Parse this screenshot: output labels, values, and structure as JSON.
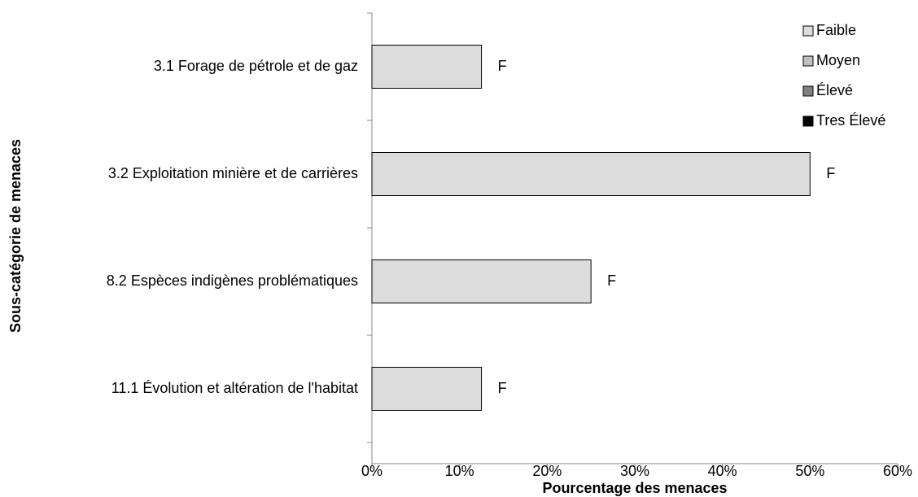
{
  "chart_data": {
    "type": "bar",
    "orientation": "horizontal",
    "stacked": true,
    "x_label": "Pourcentage des menaces",
    "y_label": "Sous-catégorie de menaces",
    "categories": [
      "3.1 Forage de pétrole et de gaz",
      "3.2 Exploitation minière et de carrières",
      "8.2 Espèces indigènes problématiques",
      "11.1 Évolution et altération de l'habitat"
    ],
    "series": [
      {
        "name": "Faible",
        "color": "#dcdcdc",
        "values": [
          12.5,
          50,
          25,
          12.5
        ],
        "value_labels": [
          "F",
          "F",
          "F",
          "F"
        ]
      },
      {
        "name": "Moyen",
        "color": "#bfbfbf",
        "values": [
          0,
          0,
          0,
          0
        ]
      },
      {
        "name": "Élevé",
        "color": "#808080",
        "values": [
          0,
          0,
          0,
          0
        ]
      },
      {
        "name": "Tres Élevé",
        "color": "#000000",
        "values": [
          0,
          0,
          0,
          0
        ]
      }
    ],
    "xlim": [
      0,
      60
    ],
    "xticks": [
      {
        "value": 0,
        "label": "0%"
      },
      {
        "value": 10,
        "label": "10%"
      },
      {
        "value": 20,
        "label": "20%"
      },
      {
        "value": 30,
        "label": "30%"
      },
      {
        "value": 40,
        "label": "40%"
      },
      {
        "value": 50,
        "label": "50%"
      },
      {
        "value": 60,
        "label": "60%"
      }
    ],
    "legend": "top-right",
    "grid": false
  }
}
